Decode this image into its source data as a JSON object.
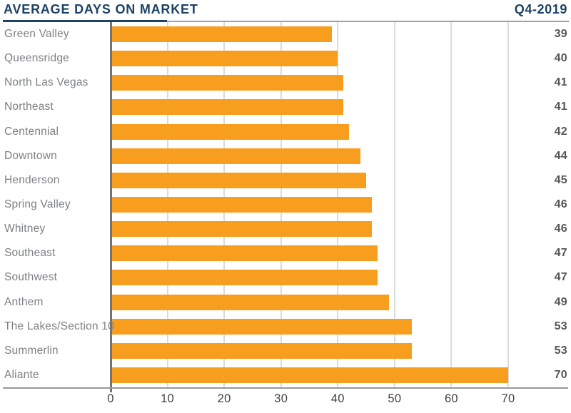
{
  "header": {
    "title": "AVERAGE DAYS ON MARKET",
    "period": "Q4-2019"
  },
  "chart_data": {
    "type": "bar",
    "orientation": "horizontal",
    "title": "AVERAGE DAYS ON MARKET",
    "period": "Q4-2019",
    "categories": [
      "Green Valley",
      "Queensridge",
      "North Las Vegas",
      "Northeast",
      "Centennial",
      "Downtown",
      "Henderson",
      "Spring Valley",
      "Whitney",
      "Southeast",
      "Southwest",
      "Anthem",
      "The Lakes/Section 10",
      "Summerlin",
      "Aliante"
    ],
    "values": [
      39,
      40,
      41,
      41,
      42,
      44,
      45,
      46,
      46,
      47,
      47,
      49,
      53,
      53,
      70
    ],
    "value_labels_position": "right",
    "xlabel": "",
    "ylabel": "",
    "xlim": [
      0,
      70
    ],
    "xticks": [
      0,
      10,
      20,
      30,
      40,
      50,
      60,
      70
    ],
    "grid": true,
    "legend": "none",
    "colors": {
      "bar": "#F89E1F",
      "title": "#1D4265",
      "category_label": "#7E8083",
      "value_label": "#55565A",
      "tick_label": "#414244",
      "gridline": "#DADBDD",
      "zero_axis": "#717376",
      "axis_rule": "#97999C",
      "title_underline": "#1D4265"
    }
  }
}
